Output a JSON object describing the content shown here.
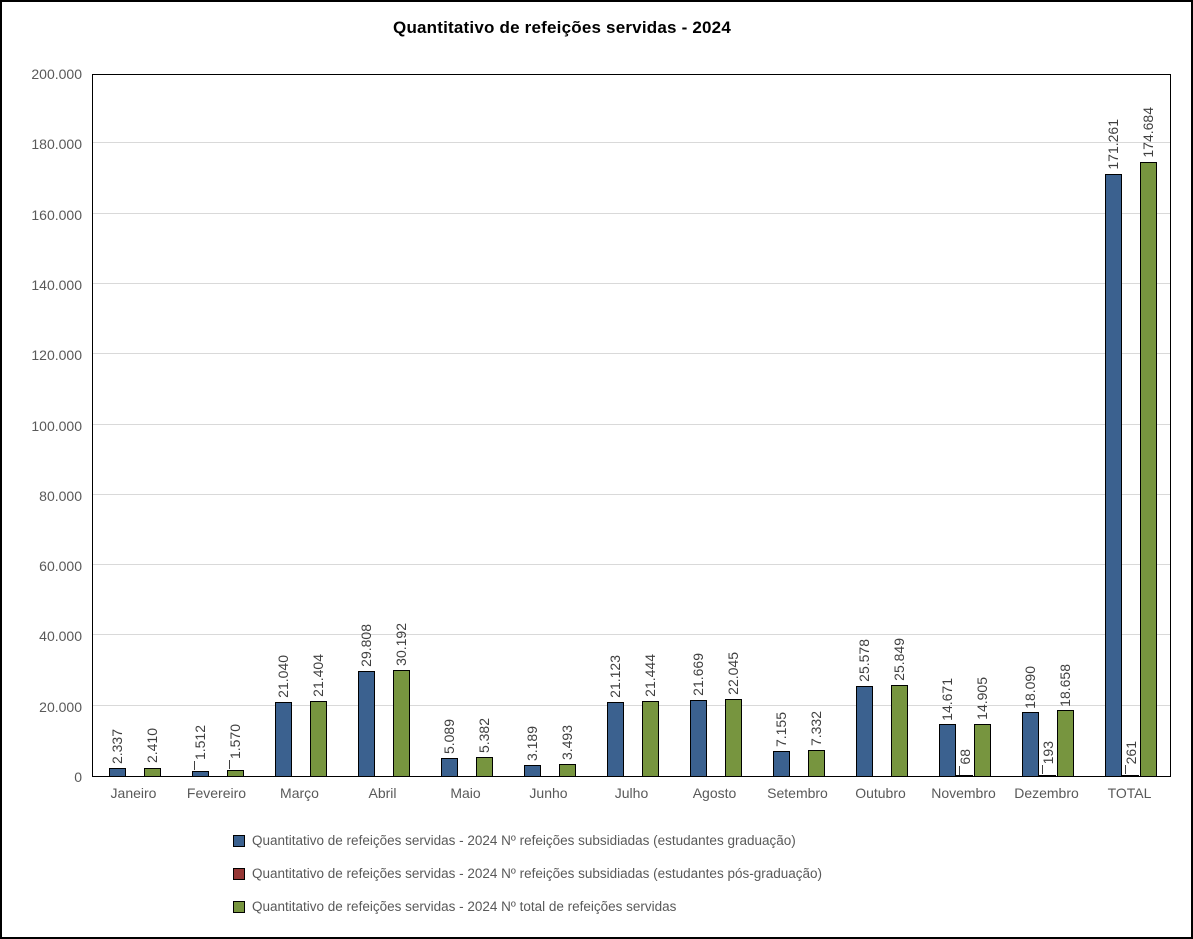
{
  "chart_data": {
    "type": "bar",
    "title": "Quantitativo de refeições servidas - 2024",
    "categories": [
      "Janeiro",
      "Fevereiro",
      "Março",
      "Abril",
      "Maio",
      "Junho",
      "Julho",
      "Agosto",
      "Setembro",
      "Outubro",
      "Novembro",
      "Dezembro",
      "TOTAL"
    ],
    "series": [
      {
        "name": "Quantitativo de refeições servidas - 2024 Nº refeições subsidiadas (estudantes graduação)",
        "color": "#3b618f",
        "values": [
          2337,
          1512,
          21040,
          29808,
          5089,
          3189,
          21123,
          21669,
          7155,
          25578,
          14671,
          18090,
          171261
        ],
        "labels": [
          "2.337",
          "1.512",
          "21.040",
          "29.808",
          "5.089",
          "3.189",
          "21.123",
          "21.669",
          "7.155",
          "25.578",
          "14.671",
          "18.090",
          "171.261"
        ]
      },
      {
        "name": "Quantitativo de refeições servidas - 2024 Nº refeições subsidiadas (estudantes pós-graduação)",
        "color": "#953735",
        "values": [
          0,
          0,
          0,
          0,
          0,
          0,
          0,
          0,
          0,
          0,
          68,
          193,
          261
        ],
        "labels": [
          "",
          "",
          "",
          "",
          "",
          "",
          "",
          "",
          "",
          "",
          "68",
          "193",
          "261"
        ]
      },
      {
        "name": "Quantitativo de refeições servidas - 2024 Nº total de refeições servidas",
        "color": "#77953f",
        "values": [
          2410,
          1570,
          21404,
          30192,
          5382,
          3493,
          21444,
          22045,
          7332,
          25849,
          14905,
          18658,
          174684
        ],
        "labels": [
          "2.410",
          "1.570",
          "21.404",
          "30.192",
          "5.382",
          "3.493",
          "21.444",
          "22.045",
          "7.332",
          "25.849",
          "14.905",
          "18.658",
          "174.684"
        ]
      }
    ],
    "ylim": [
      0,
      200000
    ],
    "ytick_interval": 20000,
    "ytick_labels": [
      "0",
      "20.000",
      "40.000",
      "60.000",
      "80.000",
      "100.000",
      "120.000",
      "140.000",
      "160.000",
      "180.000",
      "200.000"
    ],
    "grid": true,
    "legend_position": "bottom",
    "colors": {
      "gridline": "#d9d9d9",
      "axis_text": "#595959",
      "data_label": "#3f3f3f",
      "plot_border": "#000000",
      "frame_border": "#000000"
    }
  }
}
